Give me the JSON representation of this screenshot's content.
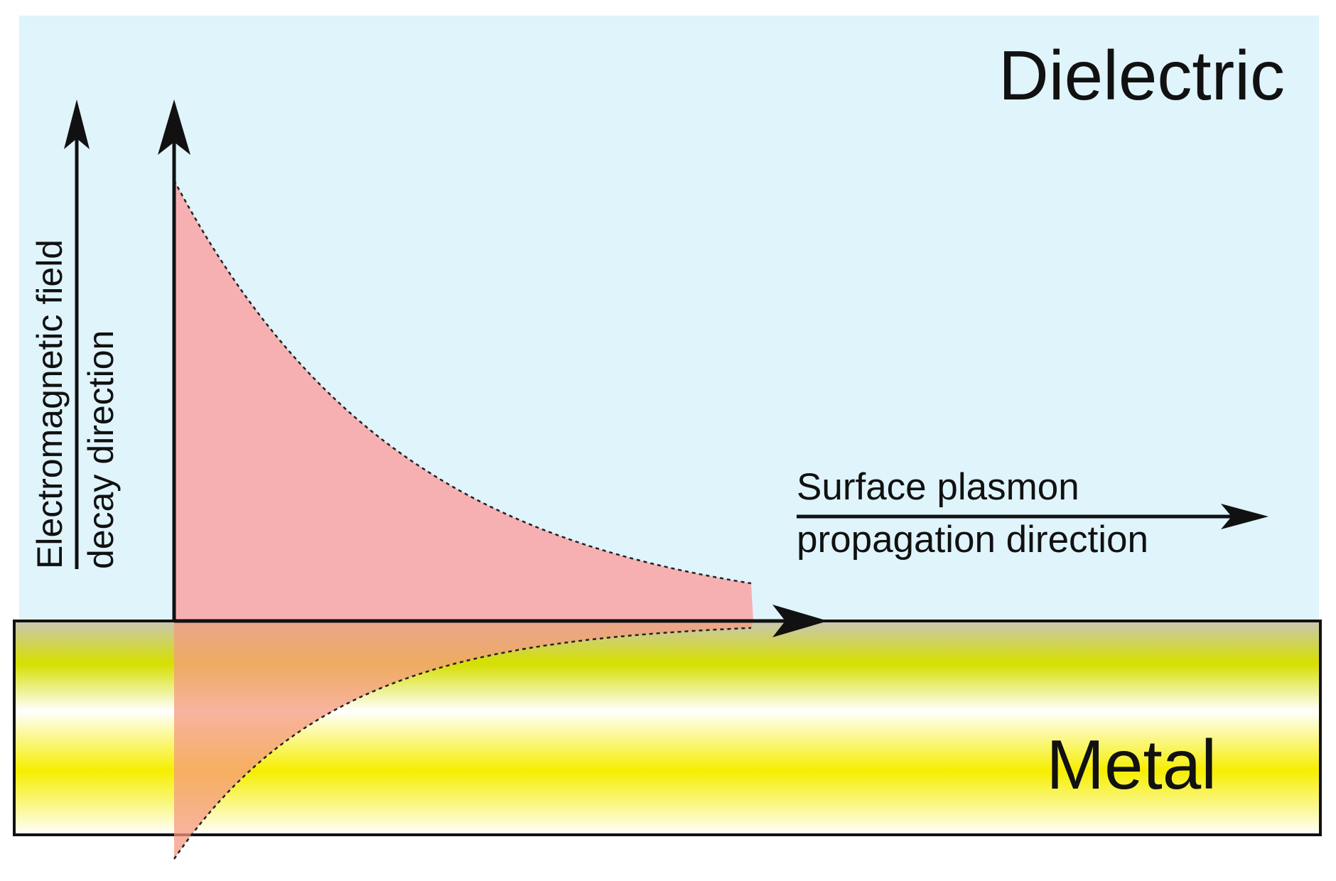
{
  "regions": {
    "top": "Dielectric",
    "bottom": "Metal"
  },
  "propagation_label": {
    "line1": "Surface plasmon",
    "line2": "propagation direction"
  },
  "decay_label": {
    "line1": "Electromagnetic field",
    "line2": "decay direction"
  }
}
